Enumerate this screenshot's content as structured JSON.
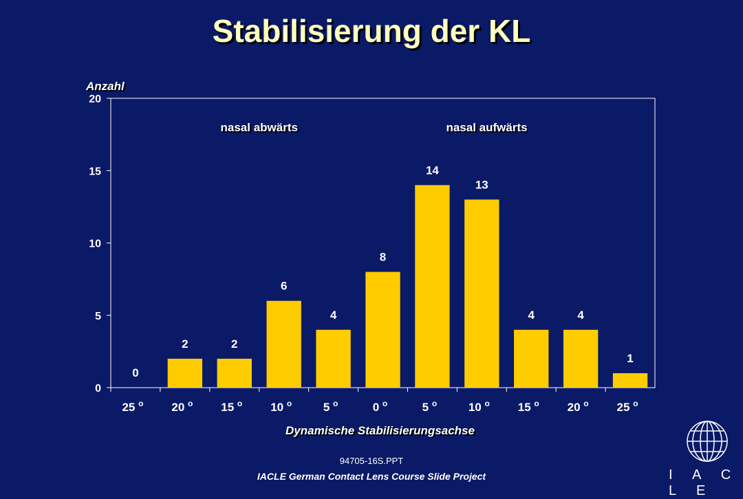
{
  "slide": {
    "title": "Stabilisierung der KL",
    "footer_code": "94705-16S.PPT",
    "footer_project": "IACLE German Contact Lens Course Slide Project",
    "logo_text": "I A C L E",
    "logo_icon": "globe-icon"
  },
  "colors": {
    "background": "#0b1a66",
    "bar": "#ffcc00",
    "title": "#ffffc0",
    "axis": "#ffffff"
  },
  "chart_data": {
    "type": "bar",
    "categories": [
      "25 o",
      "20 o",
      "15 o",
      "10 o",
      "5 o",
      "0 o",
      "5 o",
      "10 o",
      "15 o",
      "20 o",
      "25 o"
    ],
    "values": [
      0,
      2,
      2,
      6,
      4,
      8,
      14,
      13,
      4,
      4,
      1
    ],
    "data_labels": [
      "0",
      "2",
      "2",
      "6",
      "4",
      "8",
      "14",
      "13",
      "4",
      "4",
      "1"
    ],
    "ylabel": "Anzahl",
    "xlabel": "Dynamische Stabilisierungsachse",
    "ylim": [
      0,
      20
    ],
    "yticks": [
      0,
      5,
      10,
      15,
      20
    ],
    "annotations": [
      "nasal abwärts",
      "nasal aufwärts"
    ],
    "grid": false,
    "legend": "none"
  }
}
